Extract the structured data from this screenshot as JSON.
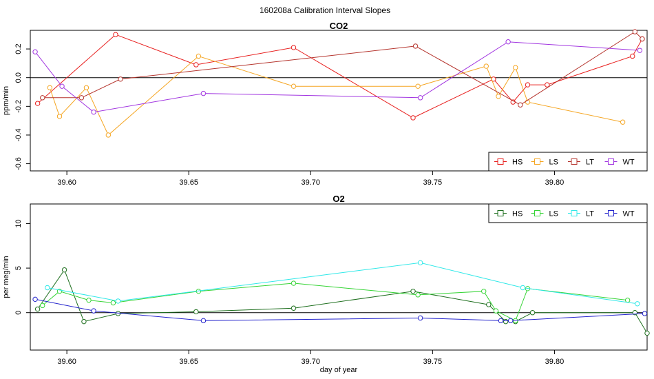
{
  "figure_title": "160208a   Calibration Interval Slopes",
  "chart_data": [
    {
      "type": "line",
      "title": "CO2",
      "xlabel": "",
      "ylabel": "ppm/min",
      "xlim": [
        39.585,
        39.838
      ],
      "ylim": [
        -0.65,
        0.33
      ],
      "xticks": [
        39.6,
        39.65,
        39.7,
        39.75,
        39.8
      ],
      "xtick_labels": [
        "39.60",
        "39.65",
        "39.70",
        "39.75",
        "39.80"
      ],
      "yticks": [
        -0.6,
        -0.4,
        -0.2,
        0.0,
        0.2
      ],
      "ytick_labels": [
        "-0.6",
        "-0.4",
        "-0.2",
        "0.0",
        "0.2"
      ],
      "hline": 0,
      "legend_position": "bottom-right",
      "series": [
        {
          "name": "HS",
          "color": "#e8201f",
          "x": [
            39.588,
            39.62,
            39.653,
            39.693,
            39.742,
            39.775,
            39.783,
            39.789,
            39.797,
            39.832,
            39.836
          ],
          "y": [
            -0.18,
            0.3,
            0.09,
            0.21,
            -0.28,
            -0.01,
            -0.17,
            -0.05,
            -0.05,
            0.15,
            0.27
          ]
        },
        {
          "name": "LS",
          "color": "#f5a623",
          "x": [
            39.593,
            39.597,
            39.608,
            39.617,
            39.654,
            39.693,
            39.744,
            39.772,
            39.777,
            39.784,
            39.789,
            39.828
          ],
          "y": [
            -0.07,
            -0.27,
            -0.07,
            -0.4,
            0.15,
            -0.06,
            -0.06,
            0.08,
            -0.13,
            0.07,
            -0.17,
            -0.31
          ]
        },
        {
          "name": "LT",
          "color": "#b5342d",
          "x": [
            39.59,
            39.606,
            39.622,
            39.743,
            39.786,
            39.833,
            39.836
          ],
          "y": [
            -0.14,
            -0.14,
            -0.01,
            0.22,
            -0.19,
            0.32,
            0.27
          ]
        },
        {
          "name": "WT",
          "color": "#a135e0",
          "x": [
            39.587,
            39.598,
            39.611,
            39.656,
            39.745,
            39.781,
            39.835
          ],
          "y": [
            0.18,
            -0.06,
            -0.24,
            -0.11,
            -0.14,
            0.25,
            0.19
          ]
        }
      ]
    },
    {
      "type": "line",
      "title": "O2",
      "xlabel": "day of year",
      "ylabel": "per meg/min",
      "xlim": [
        39.585,
        39.838
      ],
      "ylim": [
        -4.2,
        12.2
      ],
      "xticks": [
        39.6,
        39.65,
        39.7,
        39.75,
        39.8
      ],
      "xtick_labels": [
        "39.60",
        "39.65",
        "39.70",
        "39.75",
        "39.80"
      ],
      "yticks": [
        0,
        5,
        10
      ],
      "ytick_labels": [
        "0",
        "5",
        "10"
      ],
      "hline": 0,
      "legend_position": "top-right",
      "series": [
        {
          "name": "HS",
          "color": "#1e6f1e",
          "x": [
            39.588,
            39.599,
            39.607,
            39.621,
            39.653,
            39.693,
            39.742,
            39.773,
            39.78,
            39.784,
            39.791,
            39.833,
            39.838
          ],
          "y": [
            0.4,
            4.8,
            -1.0,
            -0.1,
            0.1,
            0.5,
            2.4,
            0.9,
            -1.0,
            -1.0,
            0.0,
            0.0,
            -2.3
          ]
        },
        {
          "name": "LS",
          "color": "#36d436",
          "x": [
            39.59,
            39.597,
            39.609,
            39.619,
            39.654,
            39.693,
            39.744,
            39.771,
            39.776,
            39.784,
            39.789,
            39.83
          ],
          "y": [
            0.8,
            2.4,
            1.4,
            1.1,
            2.4,
            3.3,
            2.0,
            2.4,
            0.2,
            -0.9,
            2.7,
            1.4
          ]
        },
        {
          "name": "LT",
          "color": "#2fe8e8",
          "x": [
            39.592,
            39.621,
            39.745,
            39.787,
            39.834
          ],
          "y": [
            2.8,
            1.3,
            5.6,
            2.8,
            1.0
          ]
        },
        {
          "name": "WT",
          "color": "#2323cc",
          "x": [
            39.587,
            39.611,
            39.656,
            39.745,
            39.778,
            39.782,
            39.837
          ],
          "y": [
            1.5,
            0.2,
            -0.9,
            -0.6,
            -0.9,
            -0.9,
            -0.1
          ]
        }
      ]
    }
  ]
}
